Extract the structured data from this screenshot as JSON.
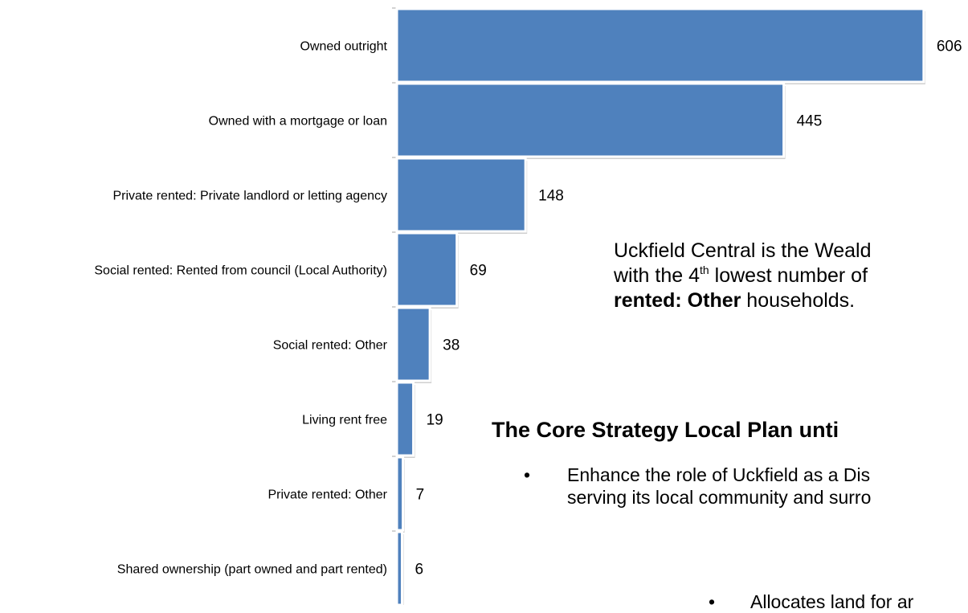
{
  "chart_data": {
    "type": "bar",
    "orientation": "horizontal",
    "categories": [
      "Owned outright",
      "Owned with a mortgage or loan",
      "Private rented: Private landlord or letting agency",
      "Social rented: Rented from council (Local Authority)",
      "Social rented: Other",
      "Living rent free",
      "Private rented: Other",
      "Shared ownership (part owned and part rented)"
    ],
    "values": [
      606,
      445,
      148,
      69,
      38,
      19,
      7,
      6
    ],
    "data_labels": [
      "606",
      "445",
      "148",
      "69",
      "38",
      "19",
      "7",
      "6"
    ],
    "bar_color": "#4f81bd",
    "xlim": [
      0,
      620
    ],
    "grid": false
  },
  "callout": {
    "line1": "Uckfield Central is the Weald",
    "line2_pre": "with the 4",
    "line2_sup": "th",
    "line2_post": " lowest number of",
    "line3_bold": "rented: Other",
    "line3_rest": " households."
  },
  "heading": "The Core Strategy Local Plan unti",
  "bullets": [
    {
      "line1": "Enhance the role of Uckfield as a Dis",
      "line2": "serving its local community and surro"
    },
    {
      "line1": "Allocates land for ar"
    }
  ]
}
